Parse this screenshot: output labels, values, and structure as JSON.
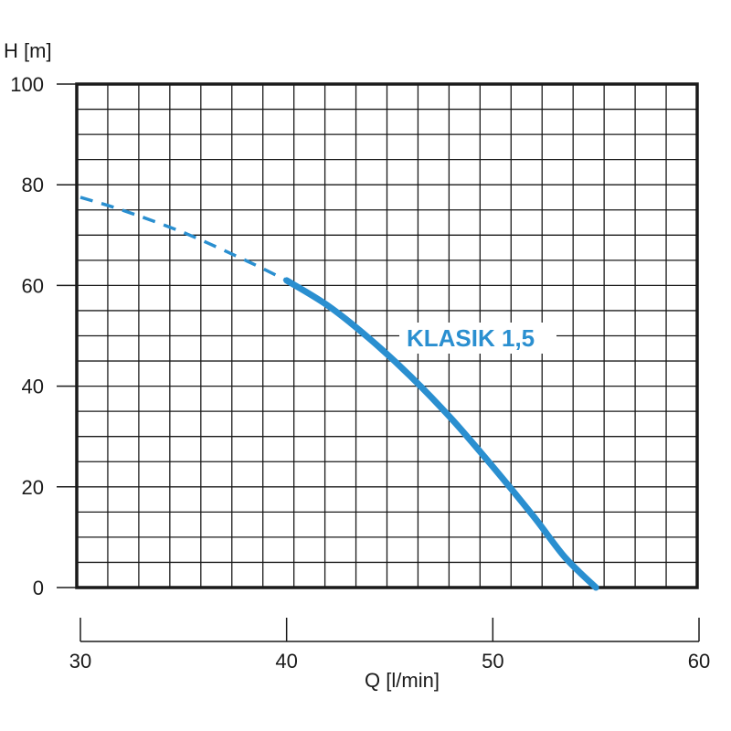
{
  "chart_data": {
    "type": "line",
    "ylabel": "H [m]",
    "xlabel": "Q [l/min]",
    "xlim": [
      30,
      60
    ],
    "ylim": [
      0,
      100
    ],
    "x_ticks": [
      "30",
      "40",
      "50",
      "60"
    ],
    "y_ticks": [
      "0",
      "20",
      "40",
      "60",
      "80",
      "100"
    ],
    "grid": true,
    "colors": {
      "curve": "#2a8fd0",
      "grid": "#1a1a1a",
      "frame": "#1a1a1a"
    },
    "series": [
      {
        "name": "KLASIK 1,5",
        "solid_from_q": 40,
        "points": [
          {
            "q": 30,
            "h": 77.5
          },
          {
            "q": 32,
            "h": 75
          },
          {
            "q": 35,
            "h": 70.5
          },
          {
            "q": 38,
            "h": 65
          },
          {
            "q": 40,
            "h": 61
          },
          {
            "q": 42,
            "h": 56
          },
          {
            "q": 44,
            "h": 49.5
          },
          {
            "q": 46,
            "h": 42
          },
          {
            "q": 48,
            "h": 33.5
          },
          {
            "q": 50,
            "h": 24
          },
          {
            "q": 52,
            "h": 14
          },
          {
            "q": 53.5,
            "h": 6
          },
          {
            "q": 55,
            "h": 0
          }
        ]
      }
    ]
  }
}
